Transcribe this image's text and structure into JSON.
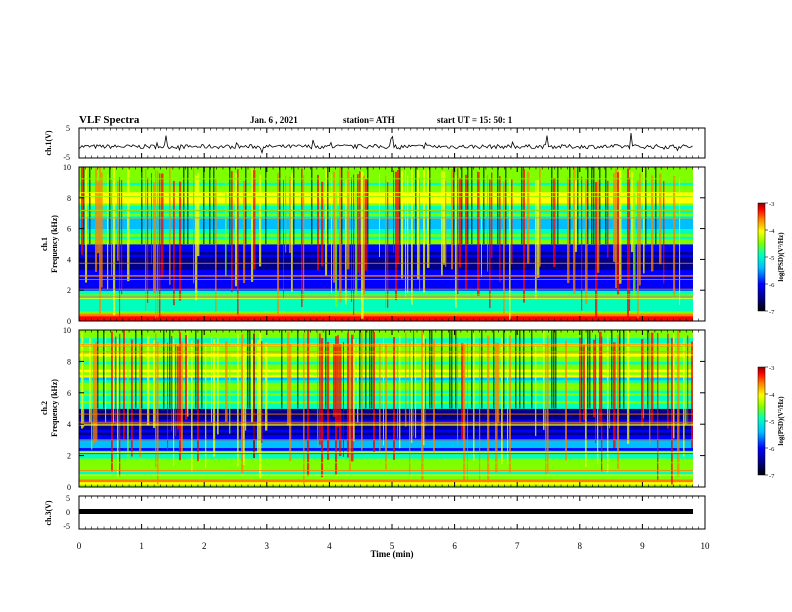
{
  "header": {
    "title": "VLF Spectra",
    "date": "Jan. 6 , 2021",
    "station": "station= ATH",
    "start": "start UT = 15: 50: 1"
  },
  "chart_data": [
    {
      "type": "line",
      "ylabel": "ch.1(V)",
      "ylim": [
        -5,
        5
      ],
      "yticks": [
        "5",
        "-5"
      ],
      "xlim": [
        0,
        10
      ],
      "description_values": {
        "baseline": -1.2,
        "noise": "small fluctuations with spikes"
      }
    },
    {
      "type": "heatmap",
      "ylabel": "ch.1 Frequency (kHz)",
      "ylim": [
        0,
        10
      ],
      "yticks": [
        "0",
        "2",
        "4",
        "6",
        "8",
        "10"
      ],
      "xlim": [
        0,
        10
      ],
      "colorbar": {
        "label": "log(PSD)(V²/Hz)",
        "ticks": [
          "-3",
          "-4",
          "-5",
          "-6",
          "-7"
        ],
        "range": [
          -7,
          -3
        ]
      }
    },
    {
      "type": "heatmap",
      "ylabel": "ch.2 Frequency (kHz)",
      "ylim": [
        0,
        10
      ],
      "yticks": [
        "0",
        "2",
        "4",
        "6",
        "8",
        "10"
      ],
      "xlim": [
        0,
        10
      ],
      "colorbar": {
        "label": "log(PSD)(V²/Hz)",
        "ticks": [
          "-3",
          "-4",
          "-5",
          "-6",
          "-7"
        ],
        "range": [
          -7,
          -3
        ]
      }
    },
    {
      "type": "line",
      "ylabel": "ch.3(V)",
      "ylim": [
        -5,
        5
      ],
      "yticks": [
        "5",
        "0",
        "-5"
      ],
      "xlim": [
        0,
        10
      ],
      "xlabel": "Time (min)",
      "xticks": [
        "0",
        "1",
        "2",
        "3",
        "4",
        "5",
        "6",
        "7",
        "8",
        "9",
        "10"
      ],
      "description_values": {
        "baseline": -0.3
      }
    }
  ],
  "colors": {
    "scale": [
      "#000000",
      "#00008b",
      "#0000ff",
      "#00bfff",
      "#00ffbf",
      "#7fff00",
      "#ffff00",
      "#ff8000",
      "#ff0000",
      "#8b0000"
    ]
  }
}
